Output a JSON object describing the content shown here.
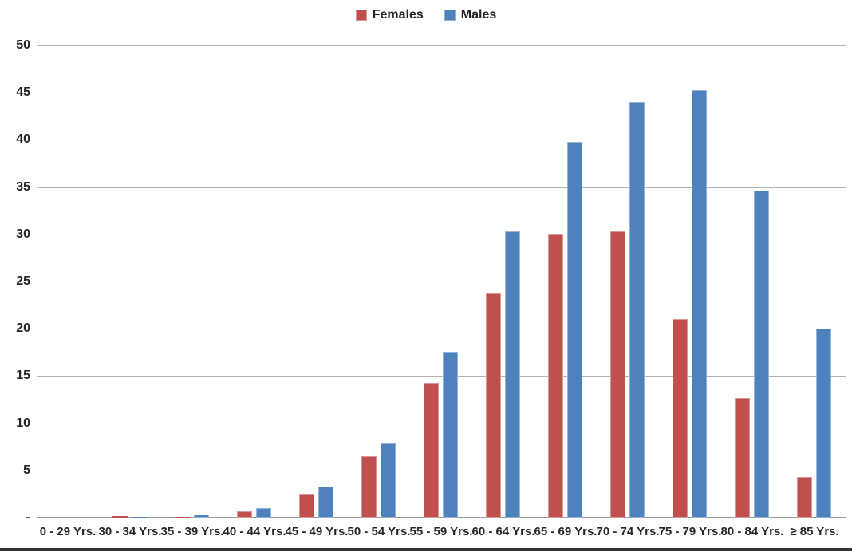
{
  "legend": {
    "items": [
      {
        "label": "Females",
        "swatch_icon": "square-swatch-red"
      },
      {
        "label": "Males",
        "swatch_icon": "square-swatch-blue"
      }
    ]
  },
  "colors": {
    "females_fill": "#C0504D",
    "females_border": "#D99795",
    "males_fill": "#4F81BD",
    "males_border": "#95B3D7",
    "gridline": "#B3B3B3",
    "axis_line": "#9A9A9A",
    "label_text": "#262626",
    "bottom_rule": "#333333"
  },
  "chart_data": {
    "type": "bar",
    "title": "",
    "xlabel": "",
    "ylabel": "",
    "categories": [
      "0 - 29 Yrs.",
      "30 - 34 Yrs.",
      "35 - 39 Yrs.",
      "40 - 44 Yrs.",
      "45 - 49 Yrs.",
      "50 - 54 Yrs.",
      "55 - 59 Yrs.",
      "60 - 64 Yrs.",
      "65 - 69 Yrs.",
      "70 - 74 Yrs.",
      "75 - 79 Yrs.",
      "80 - 84 Yrs.",
      "≥ 85 Yrs."
    ],
    "series": [
      {
        "name": "Females",
        "color": "#C0504D",
        "border": "#D99795",
        "values": [
          0,
          0.15,
          0.1,
          0.7,
          2.5,
          6.5,
          14.3,
          23.8,
          30.1,
          30.3,
          21.0,
          12.7,
          4.3
        ]
      },
      {
        "name": "Males",
        "color": "#4F81BD",
        "border": "#95B3D7",
        "values": [
          0,
          0.1,
          0.3,
          1.0,
          3.3,
          7.9,
          17.6,
          30.3,
          39.8,
          44.0,
          45.3,
          34.6,
          20.0
        ]
      }
    ],
    "ylim": [
      0,
      50
    ],
    "ytick_step": 5,
    "ytick_labels": [
      "-",
      "5",
      "10",
      "15",
      "20",
      "25",
      "30",
      "35",
      "40",
      "45",
      "50"
    ],
    "grid": true,
    "legend_position": "top-center"
  }
}
